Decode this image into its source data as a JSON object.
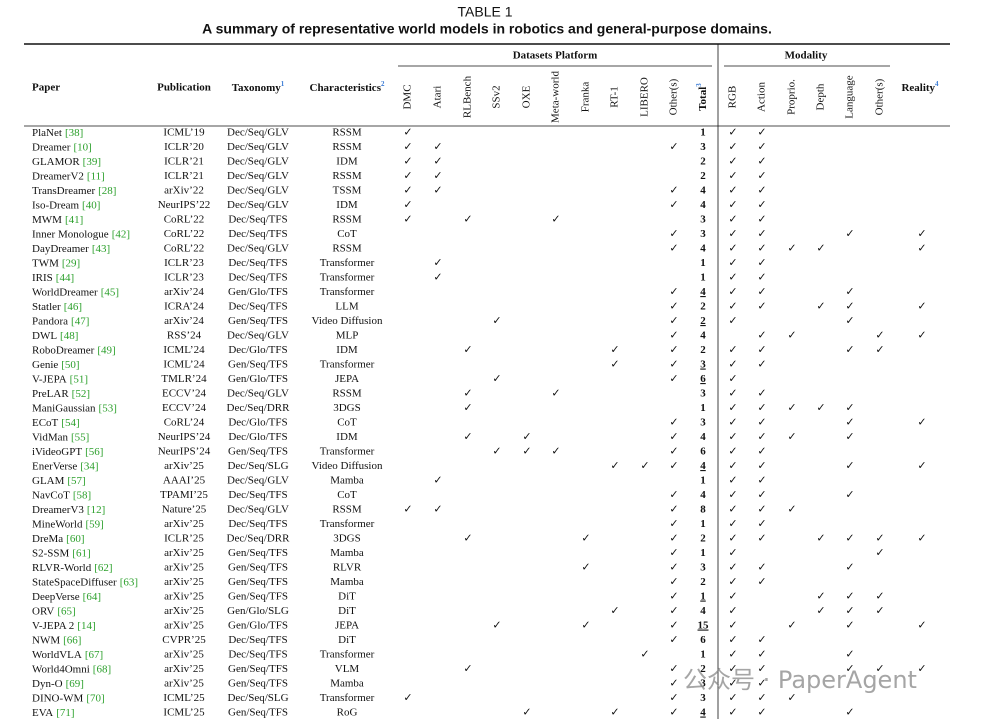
{
  "table": {
    "caption_label": "TABLE 1",
    "caption": "A summary of representative world models in robotics and general-purpose domains.",
    "group_headers": {
      "datasets": "Datasets Platform",
      "modality": "Modality"
    },
    "columns": {
      "paper": "Paper",
      "publication": "Publication",
      "taxonomy": {
        "text": "Taxonomy",
        "note": "1"
      },
      "characteristics": {
        "text": "Characteristics",
        "note": "2"
      },
      "datasets": [
        "DMC",
        "Atari",
        "RLBench",
        "SSv2",
        "OXE",
        "Meta-world",
        "Franka",
        "RT-1",
        "LIBERO",
        "Other(s)"
      ],
      "total": {
        "text": "Total",
        "note": "3"
      },
      "modality": [
        "RGB",
        "Action",
        "Proprio.",
        "Depth",
        "Language",
        "Other(s)"
      ],
      "reality": {
        "text": "Reality",
        "note": "4"
      }
    },
    "check": "✓",
    "watermark": "公众号 · PaperAgent",
    "rows": [
      {
        "paper": "PlaNet",
        "ref": "[38]",
        "publication": "ICML’19",
        "taxonomy": "Dec/Seq/GLV",
        "characteristics": "RSSM",
        "datasets": [
          "DMC"
        ],
        "total": 1,
        "modality": [
          "RGB",
          "Action"
        ]
      },
      {
        "paper": "Dreamer",
        "ref": "[10]",
        "publication": "ICLR’20",
        "taxonomy": "Dec/Seq/GLV",
        "characteristics": "RSSM",
        "datasets": [
          "DMC",
          "Atari",
          "Other(s)"
        ],
        "total": 3,
        "modality": [
          "RGB",
          "Action"
        ]
      },
      {
        "paper": "GLAMOR",
        "ref": "[39]",
        "publication": "ICLR’21",
        "taxonomy": "Dec/Seq/GLV",
        "characteristics": "IDM",
        "datasets": [
          "DMC",
          "Atari"
        ],
        "total": 2,
        "modality": [
          "RGB",
          "Action"
        ]
      },
      {
        "paper": "DreamerV2",
        "ref": "[11]",
        "publication": "ICLR’21",
        "taxonomy": "Dec/Seq/GLV",
        "characteristics": "RSSM",
        "datasets": [
          "DMC",
          "Atari"
        ],
        "total": 2,
        "modality": [
          "RGB",
          "Action"
        ]
      },
      {
        "paper": "TransDreamer",
        "ref": "[28]",
        "publication": "arXiv’22",
        "taxonomy": "Dec/Seq/GLV",
        "characteristics": "TSSM",
        "datasets": [
          "DMC",
          "Atari",
          "Other(s)"
        ],
        "total": 4,
        "modality": [
          "RGB",
          "Action"
        ]
      },
      {
        "paper": "Iso-Dream",
        "ref": "[40]",
        "publication": "NeurIPS’22",
        "taxonomy": "Dec/Seq/GLV",
        "characteristics": "IDM",
        "datasets": [
          "DMC",
          "Other(s)"
        ],
        "total": 4,
        "modality": [
          "RGB",
          "Action"
        ]
      },
      {
        "paper": "MWM",
        "ref": "[41]",
        "publication": "CoRL’22",
        "taxonomy": "Dec/Seq/TFS",
        "characteristics": "RSSM",
        "datasets": [
          "DMC",
          "RLBench",
          "Meta-world"
        ],
        "total": 3,
        "modality": [
          "RGB",
          "Action"
        ]
      },
      {
        "paper": "Inner Monologue",
        "ref": "[42]",
        "publication": "CoRL’22",
        "taxonomy": "Dec/Seq/TFS",
        "characteristics": "CoT",
        "datasets": [
          "Other(s)"
        ],
        "total": 3,
        "modality": [
          "RGB",
          "Action",
          "Language"
        ],
        "reality": true
      },
      {
        "paper": "DayDreamer",
        "ref": "[43]",
        "publication": "CoRL’22",
        "taxonomy": "Dec/Seq/GLV",
        "characteristics": "RSSM",
        "datasets": [
          "Other(s)"
        ],
        "total": 4,
        "modality": [
          "RGB",
          "Action",
          "Proprio.",
          "Depth"
        ],
        "reality": true
      },
      {
        "paper": "TWM",
        "ref": "[29]",
        "publication": "ICLR’23",
        "taxonomy": "Dec/Seq/TFS",
        "characteristics": "Transformer",
        "datasets": [
          "Atari"
        ],
        "total": 1,
        "modality": [
          "RGB",
          "Action"
        ]
      },
      {
        "paper": "IRIS",
        "ref": "[44]",
        "publication": "ICLR’23",
        "taxonomy": "Dec/Seq/TFS",
        "characteristics": "Transformer",
        "datasets": [
          "Atari"
        ],
        "total": 1,
        "modality": [
          "RGB",
          "Action"
        ]
      },
      {
        "paper": "WorldDreamer",
        "ref": "[45]",
        "publication": "arXiv’24",
        "taxonomy": "Gen/Glo/TFS",
        "characteristics": "Transformer",
        "datasets": [
          "Other(s)"
        ],
        "total": 4,
        "total_underlined": true,
        "modality": [
          "RGB",
          "Action",
          "Language"
        ]
      },
      {
        "paper": "Statler",
        "ref": "[46]",
        "publication": "ICRA’24",
        "taxonomy": "Dec/Seq/TFS",
        "characteristics": "LLM",
        "datasets": [
          "Other(s)"
        ],
        "total": 2,
        "modality": [
          "RGB",
          "Action",
          "Depth",
          "Language"
        ],
        "reality": true
      },
      {
        "paper": "Pandora",
        "ref": "[47]",
        "publication": "arXiv’24",
        "taxonomy": "Gen/Seq/TFS",
        "characteristics": "Video Diffusion",
        "datasets": [
          "SSv2",
          "Other(s)"
        ],
        "total": 2,
        "total_underlined": true,
        "modality": [
          "RGB",
          "Language"
        ]
      },
      {
        "paper": "DWL",
        "ref": "[48]",
        "publication": "RSS’24",
        "taxonomy": "Dec/Seq/GLV",
        "characteristics": "MLP",
        "datasets": [
          "Other(s)"
        ],
        "total": 4,
        "modality": [
          "Action",
          "Proprio.",
          "Other(s)"
        ],
        "reality": true
      },
      {
        "paper": "RoboDreamer",
        "ref": "[49]",
        "publication": "ICML’24",
        "taxonomy": "Dec/Glo/TFS",
        "characteristics": "IDM",
        "datasets": [
          "RLBench",
          "RT-1",
          "Other(s)"
        ],
        "total": 2,
        "modality": [
          "RGB",
          "Action",
          "Language",
          "Other(s)"
        ]
      },
      {
        "paper": "Genie",
        "ref": "[50]",
        "publication": "ICML’24",
        "taxonomy": "Gen/Seq/TFS",
        "characteristics": "Transformer",
        "datasets": [
          "RT-1",
          "Other(s)"
        ],
        "total": 3,
        "total_underlined": true,
        "modality": [
          "RGB",
          "Action"
        ]
      },
      {
        "paper": "V-JEPA",
        "ref": "[51]",
        "publication": "TMLR’24",
        "taxonomy": "Gen/Glo/TFS",
        "characteristics": "JEPA",
        "datasets": [
          "SSv2",
          "Other(s)"
        ],
        "total": 6,
        "total_underlined": true,
        "modality": [
          "RGB"
        ]
      },
      {
        "paper": "PreLAR",
        "ref": "[52]",
        "publication": "ECCV’24",
        "taxonomy": "Dec/Seq/GLV",
        "characteristics": "RSSM",
        "datasets": [
          "RLBench",
          "Meta-world"
        ],
        "total": 3,
        "modality": [
          "RGB",
          "Action"
        ]
      },
      {
        "paper": "ManiGaussian",
        "ref": "[53]",
        "publication": "ECCV’24",
        "taxonomy": "Dec/Seq/DRR",
        "characteristics": "3DGS",
        "datasets": [
          "RLBench"
        ],
        "total": 1,
        "modality": [
          "RGB",
          "Action",
          "Proprio.",
          "Depth",
          "Language"
        ]
      },
      {
        "paper": "ECoT",
        "ref": "[54]",
        "publication": "CoRL’24",
        "taxonomy": "Dec/Glo/TFS",
        "characteristics": "CoT",
        "datasets": [
          "Other(s)"
        ],
        "total": 3,
        "modality": [
          "RGB",
          "Action",
          "Language"
        ],
        "reality": true
      },
      {
        "paper": "VidMan",
        "ref": "[55]",
        "publication": "NeurIPS’24",
        "taxonomy": "Dec/Glo/TFS",
        "characteristics": "IDM",
        "datasets": [
          "RLBench",
          "OXE",
          "Other(s)"
        ],
        "total": 4,
        "modality": [
          "RGB",
          "Action",
          "Proprio.",
          "Language"
        ]
      },
      {
        "paper": "iVideoGPT",
        "ref": "[56]",
        "publication": "NeurIPS’24",
        "taxonomy": "Gen/Seq/TFS",
        "characteristics": "Transformer",
        "datasets": [
          "SSv2",
          "OXE",
          "Meta-world",
          "Other(s)"
        ],
        "total": 6,
        "modality": [
          "RGB",
          "Action"
        ]
      },
      {
        "paper": "EnerVerse",
        "ref": "[34]",
        "publication": "arXiv’25",
        "taxonomy": "Dec/Seq/SLG",
        "characteristics": "Video Diffusion",
        "datasets": [
          "RT-1",
          "LIBERO",
          "Other(s)"
        ],
        "total": 4,
        "total_underlined": true,
        "modality": [
          "RGB",
          "Action",
          "Language"
        ],
        "reality": true
      },
      {
        "paper": "GLAM",
        "ref": "[57]",
        "publication": "AAAI’25",
        "taxonomy": "Dec/Seq/GLV",
        "characteristics": "Mamba",
        "datasets": [
          "Atari"
        ],
        "total": 1,
        "modality": [
          "RGB",
          "Action"
        ]
      },
      {
        "paper": "NavCoT",
        "ref": "[58]",
        "publication": "TPAMI’25",
        "taxonomy": "Dec/Seq/TFS",
        "characteristics": "CoT",
        "datasets": [
          "Other(s)"
        ],
        "total": 4,
        "modality": [
          "RGB",
          "Action",
          "Language"
        ]
      },
      {
        "paper": "DreamerV3",
        "ref": "[12]",
        "publication": "Nature’25",
        "taxonomy": "Dec/Seq/GLV",
        "characteristics": "RSSM",
        "datasets": [
          "DMC",
          "Atari",
          "Other(s)"
        ],
        "total": 8,
        "modality": [
          "RGB",
          "Action",
          "Proprio."
        ]
      },
      {
        "paper": "MineWorld",
        "ref": "[59]",
        "publication": "arXiv’25",
        "taxonomy": "Dec/Seq/TFS",
        "characteristics": "Transformer",
        "datasets": [
          "Other(s)"
        ],
        "total": 1,
        "modality": [
          "RGB",
          "Action"
        ]
      },
      {
        "paper": "DreMa",
        "ref": "[60]",
        "publication": "ICLR’25",
        "taxonomy": "Dec/Seq/DRR",
        "characteristics": "3DGS",
        "datasets": [
          "RLBench",
          "Franka",
          "Other(s)"
        ],
        "total": 2,
        "modality": [
          "RGB",
          "Action",
          "Depth",
          "Language",
          "Other(s)"
        ],
        "reality": true
      },
      {
        "paper": "S2-SSM",
        "ref": "[61]",
        "publication": "arXiv’25",
        "taxonomy": "Gen/Seq/TFS",
        "characteristics": "Mamba",
        "datasets": [
          "Other(s)"
        ],
        "total": 1,
        "modality": [
          "RGB",
          "Other(s)"
        ]
      },
      {
        "paper": "RLVR-World",
        "ref": "[62]",
        "publication": "arXiv’25",
        "taxonomy": "Gen/Seq/TFS",
        "characteristics": "RLVR",
        "datasets": [
          "Franka",
          "Other(s)"
        ],
        "total": 3,
        "modality": [
          "RGB",
          "Action",
          "Language"
        ]
      },
      {
        "paper": "StateSpaceDiffuser",
        "ref": "[63]",
        "publication": "arXiv’25",
        "taxonomy": "Gen/Seq/TFS",
        "characteristics": "Mamba",
        "datasets": [
          "Other(s)"
        ],
        "total": 2,
        "modality": [
          "RGB",
          "Action"
        ]
      },
      {
        "paper": "DeepVerse",
        "ref": "[64]",
        "publication": "arXiv’25",
        "taxonomy": "Gen/Seq/TFS",
        "characteristics": "DiT",
        "datasets": [
          "Other(s)"
        ],
        "total": 1,
        "total_underlined": true,
        "modality": [
          "RGB",
          "Depth",
          "Language",
          "Other(s)"
        ]
      },
      {
        "paper": "ORV",
        "ref": "[65]",
        "publication": "arXiv’25",
        "taxonomy": "Gen/Glo/SLG",
        "characteristics": "DiT",
        "datasets": [
          "RT-1",
          "Other(s)"
        ],
        "total": 4,
        "modality": [
          "RGB",
          "Depth",
          "Language",
          "Other(s)"
        ]
      },
      {
        "paper": "V-JEPA 2",
        "ref": "[14]",
        "publication": "arXiv’25",
        "taxonomy": "Gen/Glo/TFS",
        "characteristics": "JEPA",
        "datasets": [
          "SSv2",
          "Franka",
          "Other(s)"
        ],
        "total": 15,
        "total_underlined": true,
        "modality": [
          "RGB",
          "Proprio.",
          "Language"
        ],
        "reality": true
      },
      {
        "paper": "NWM",
        "ref": "[66]",
        "publication": "CVPR’25",
        "taxonomy": "Dec/Seq/TFS",
        "characteristics": "DiT",
        "datasets": [
          "Other(s)"
        ],
        "total": 6,
        "modality": [
          "RGB",
          "Action"
        ]
      },
      {
        "paper": "WorldVLA",
        "ref": "[67]",
        "publication": "arXiv’25",
        "taxonomy": "Dec/Seq/TFS",
        "characteristics": "Transformer",
        "datasets": [
          "LIBERO"
        ],
        "total": 1,
        "modality": [
          "RGB",
          "Action",
          "Language"
        ]
      },
      {
        "paper": "World4Omni",
        "ref": "[68]",
        "publication": "arXiv’25",
        "taxonomy": "Gen/Seq/TFS",
        "characteristics": "VLM",
        "datasets": [
          "RLBench",
          "Other(s)"
        ],
        "total": 2,
        "modality": [
          "RGB",
          "Action",
          "Language",
          "Other(s)"
        ],
        "reality": true
      },
      {
        "paper": "Dyn-O",
        "ref": "[69]",
        "publication": "arXiv’25",
        "taxonomy": "Gen/Seq/TFS",
        "characteristics": "Mamba",
        "datasets": [
          "Other(s)"
        ],
        "total": 3,
        "modality": [
          "RGB",
          "Action"
        ]
      },
      {
        "paper": "DINO-WM",
        "ref": "[70]",
        "publication": "ICML’25",
        "taxonomy": "Dec/Seq/SLG",
        "characteristics": "Transformer",
        "datasets": [
          "DMC",
          "Other(s)"
        ],
        "total": 3,
        "modality": [
          "RGB",
          "Action",
          "Proprio."
        ]
      },
      {
        "paper": "EVA",
        "ref": "[71]",
        "publication": "ICML’25",
        "taxonomy": "Gen/Seq/TFS",
        "characteristics": "RoG",
        "datasets": [
          "OXE",
          "RT-1",
          "Other(s)"
        ],
        "total": 4,
        "total_underlined": true,
        "modality": [
          "RGB",
          "Action",
          "Language"
        ]
      }
    ]
  }
}
